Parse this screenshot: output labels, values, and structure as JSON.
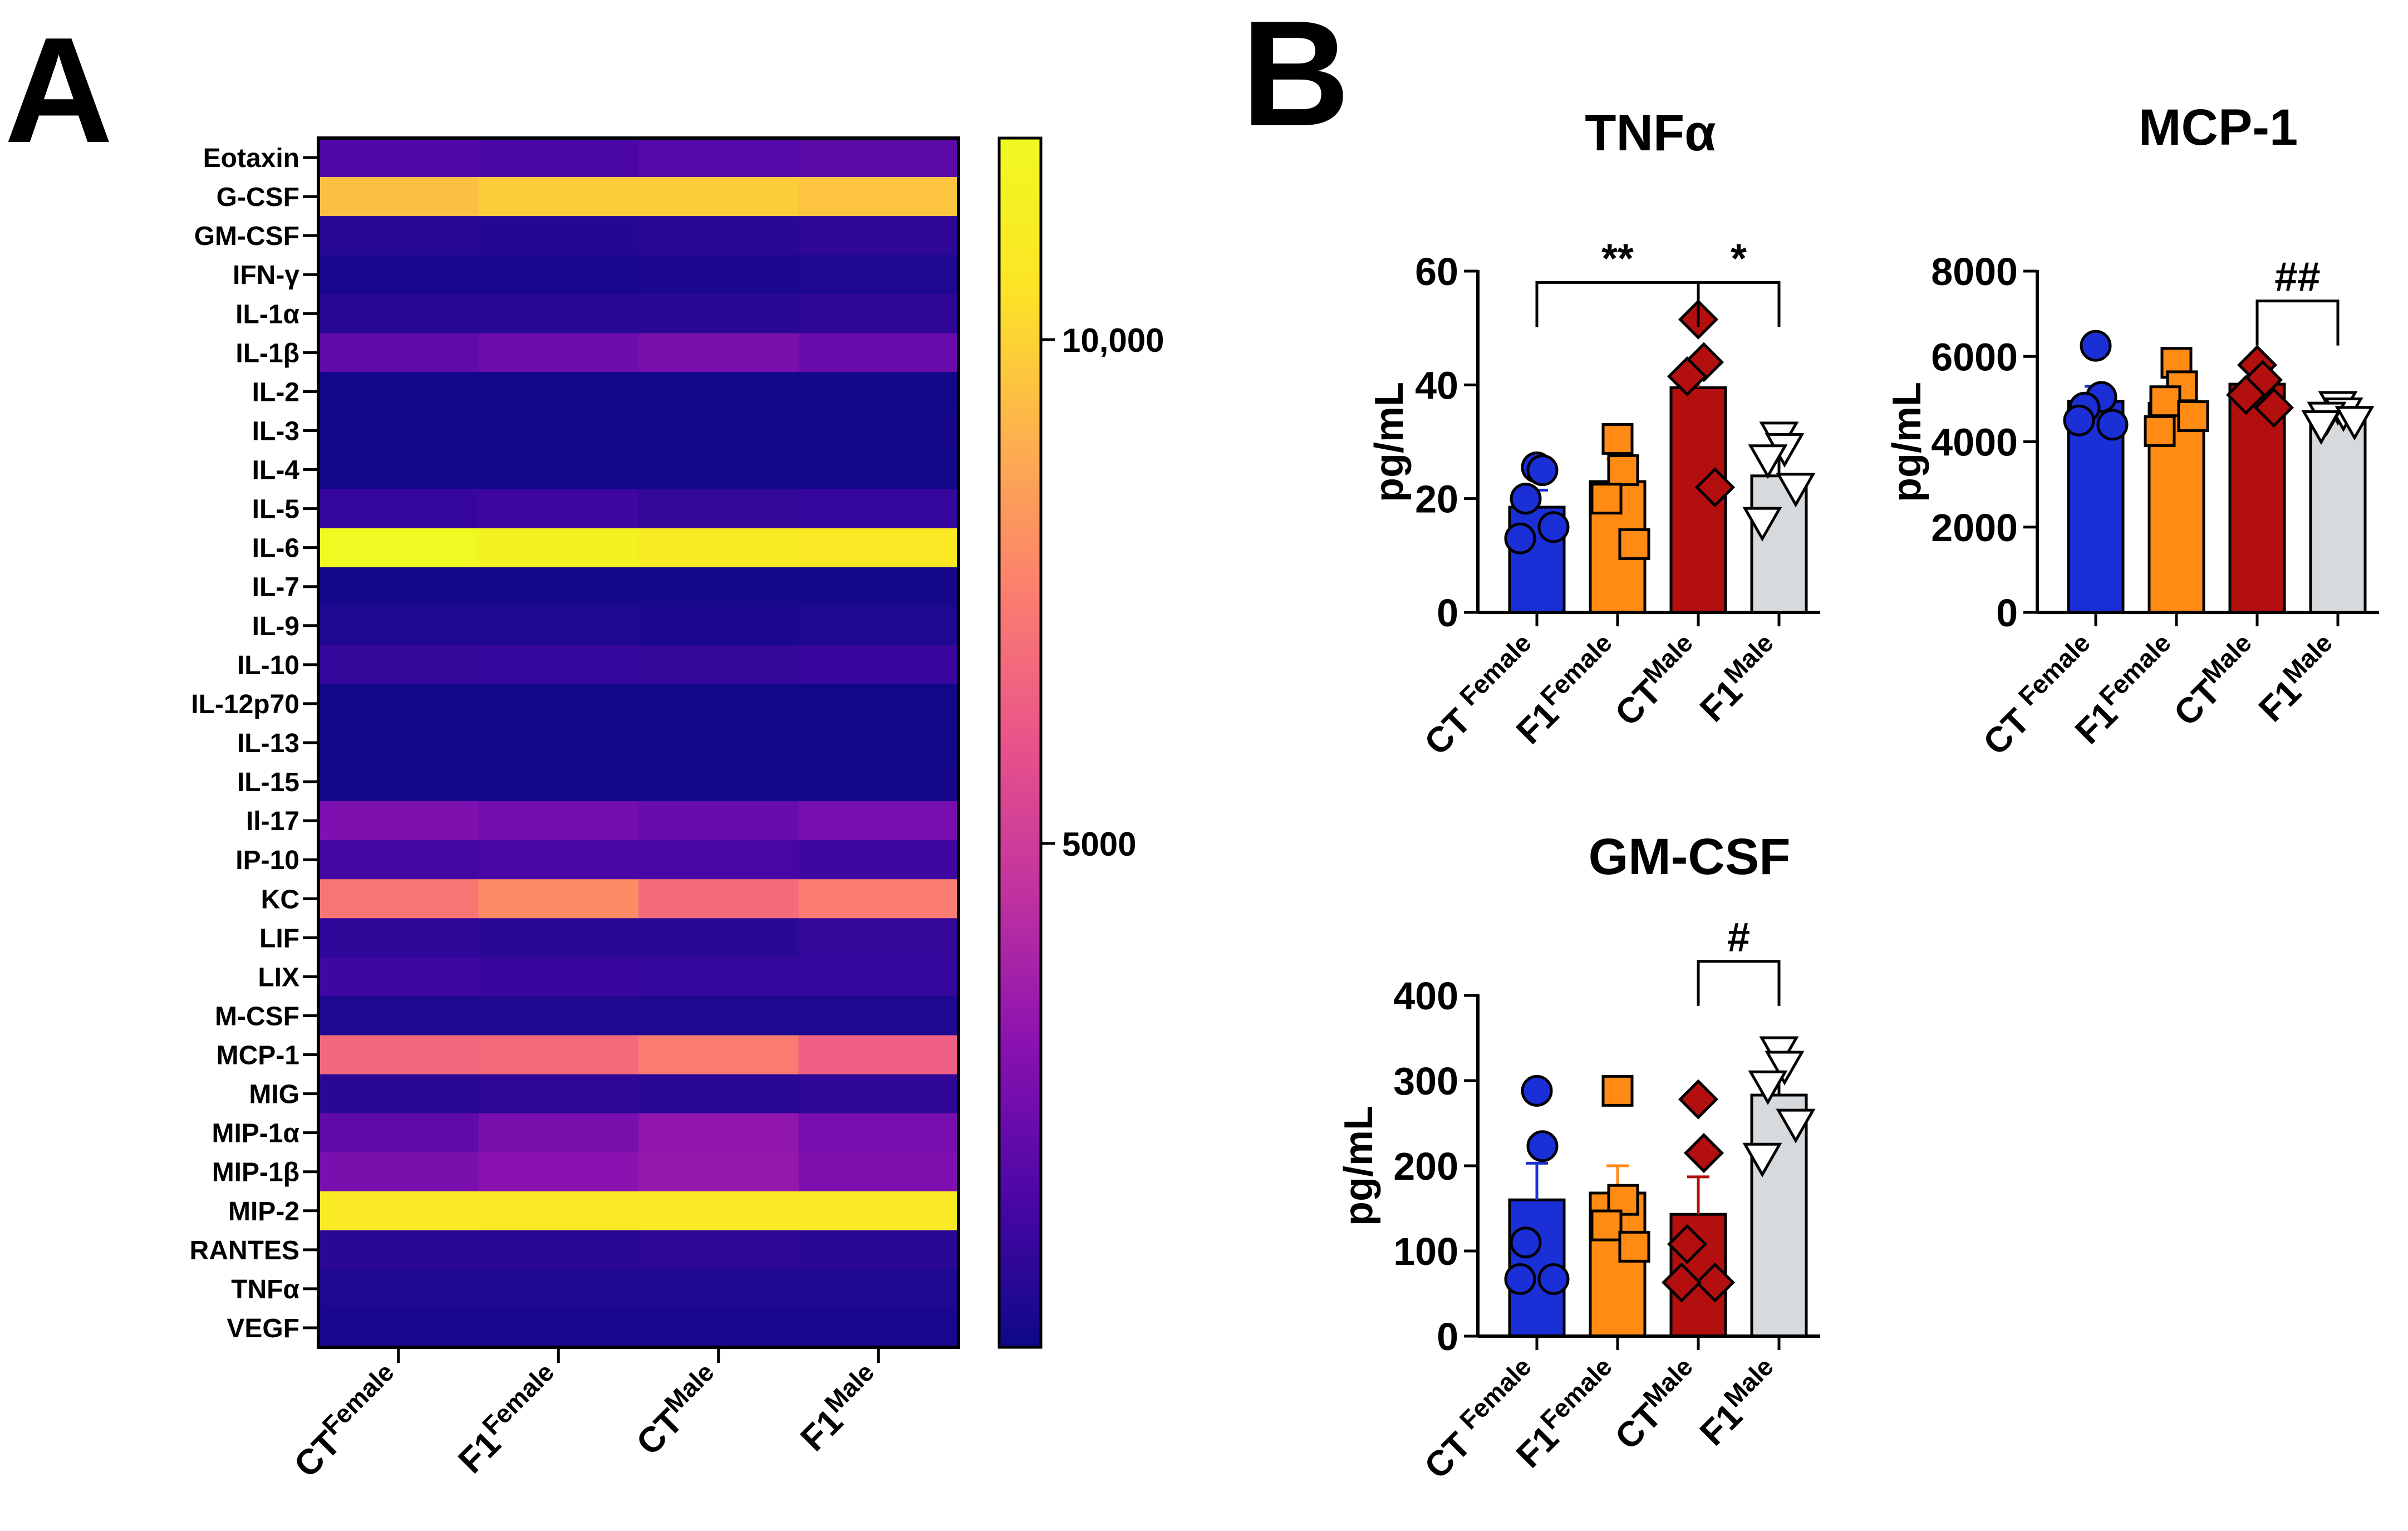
{
  "panel_a_letter": "A",
  "panel_b_letter": "B",
  "colors": {
    "CT Female": "#1a2fd6",
    "F1 Female": "#ff8a14",
    "CT Male": "#b30f0f",
    "F1 Male": "#d6dadd",
    "colormap": [
      "#0d0887",
      "#4b07a6",
      "#8a12b0",
      "#c0329f",
      "#e9538a",
      "#fb7f6e",
      "#fdb04f",
      "#fce426",
      "#f0f921"
    ]
  },
  "chart_data": [
    {
      "type": "heatmap",
      "title": "",
      "rows": [
        "Eotaxin",
        "G-CSF",
        "GM-CSF",
        "IFN-γ",
        "IL-1α",
        "IL-1β",
        "IL-2",
        "IL-3",
        "IL-4",
        "IL-5",
        "IL-6",
        "IL-7",
        "IL-9",
        "IL-10",
        "IL-12p70",
        "IL-13",
        "IL-15",
        "Il-17",
        "IP-10",
        "KC",
        "LIF",
        "LIX",
        "M-CSF",
        "MCP-1",
        "MIG",
        "MIP-1α",
        "MIP-1β",
        "MIP-2",
        "RANTES",
        "TNFα",
        "VEGF"
      ],
      "columns": [
        {
          "base": "CT",
          "sup": "Female"
        },
        {
          "base": "F1",
          "sup": "Female"
        },
        {
          "base": "CT",
          "sup": "Male"
        },
        {
          "base": "F1",
          "sup": "Male"
        }
      ],
      "values": [
        [
          1600,
          1500,
          1700,
          1800
        ],
        [
          9400,
          9800,
          9800,
          9600
        ],
        [
          600,
          550,
          650,
          800
        ],
        [
          300,
          300,
          350,
          400
        ],
        [
          600,
          650,
          650,
          800
        ],
        [
          2000,
          2300,
          2600,
          2200
        ],
        [
          100,
          100,
          100,
          100
        ],
        [
          200,
          200,
          200,
          200
        ],
        [
          150,
          150,
          150,
          150
        ],
        [
          1000,
          1200,
          900,
          1000
        ],
        [
          12000,
          11500,
          11000,
          10800
        ],
        [
          200,
          200,
          200,
          200
        ],
        [
          400,
          400,
          350,
          400
        ],
        [
          900,
          1000,
          900,
          1100
        ],
        [
          100,
          100,
          100,
          100
        ],
        [
          100,
          100,
          100,
          100
        ],
        [
          200,
          200,
          200,
          200
        ],
        [
          2700,
          2400,
          2200,
          2500
        ],
        [
          1300,
          1500,
          1400,
          1200
        ],
        [
          7200,
          7900,
          6800,
          7400
        ],
        [
          800,
          700,
          700,
          900
        ],
        [
          1200,
          1100,
          1000,
          1000
        ],
        [
          400,
          400,
          400,
          400
        ],
        [
          6700,
          6800,
          7400,
          6400
        ],
        [
          700,
          800,
          700,
          800
        ],
        [
          2000,
          2600,
          3200,
          2500
        ],
        [
          2600,
          3000,
          3300,
          2700
        ],
        [
          10900,
          10800,
          10900,
          10900
        ],
        [
          700,
          700,
          800,
          700
        ],
        [
          400,
          400,
          400,
          400
        ],
        [
          300,
          300,
          300,
          300
        ]
      ],
      "colorbar": {
        "ticks": [
          10000,
          5000
        ],
        "tick_labels": [
          "10,000",
          "5000"
        ],
        "range": [
          0,
          12000
        ]
      }
    },
    {
      "type": "bar",
      "title": "TNFα",
      "ylabel": "pg/mL",
      "ylim": [
        0,
        60
      ],
      "yticks": [
        0,
        20,
        40,
        60
      ],
      "categories": [
        {
          "base": "CT ",
          "sup": "Female"
        },
        {
          "base": "F1",
          "sup": "Female"
        },
        {
          "base": "CT",
          "sup": "Male"
        },
        {
          "base": "F1",
          "sup": "Male"
        }
      ],
      "means": [
        18.5,
        23,
        39.5,
        24
      ],
      "sem": [
        3,
        4,
        5,
        4
      ],
      "points": [
        [
          25.5,
          25,
          20,
          15,
          13
        ],
        [
          30.5,
          25,
          20,
          12
        ],
        [
          51.5,
          44,
          41.5,
          22
        ],
        [
          31,
          29,
          27,
          22,
          16
        ]
      ],
      "markers": [
        "circle",
        "square",
        "diamond",
        "triangle-down"
      ],
      "brackets": [
        {
          "from": 0,
          "to": 2,
          "y": 58,
          "label": "**"
        },
        {
          "from": 2,
          "to": 3,
          "y": 58,
          "label": "*"
        }
      ]
    },
    {
      "type": "bar",
      "title": "MCP-1",
      "ylabel": "pg/mL",
      "ylim": [
        0,
        8000
      ],
      "yticks": [
        0,
        2000,
        4000,
        6000,
        8000
      ],
      "categories": [
        {
          "base": "CT ",
          "sup": "Female"
        },
        {
          "base": "F1",
          "sup": "Female"
        },
        {
          "base": "CT",
          "sup": "Male"
        },
        {
          "base": "F1",
          "sup": "Male"
        }
      ],
      "means": [
        4950,
        4900,
        5350,
        4600
      ],
      "sem": [
        350,
        300,
        300,
        150
      ],
      "points": [
        [
          6250,
          5050,
          4800,
          4400,
          4500
        ],
        [
          5850,
          5300,
          4950,
          4600,
          4250
        ],
        [
          5800,
          5450,
          5100,
          4800
        ],
        [
          4850,
          4700,
          4600,
          4500,
          4400
        ]
      ],
      "markers": [
        "circle",
        "square",
        "diamond",
        "triangle-down"
      ],
      "brackets": [
        {
          "from": 2,
          "to": 3,
          "y": 7300,
          "label": "##"
        }
      ]
    },
    {
      "type": "bar",
      "title": "GM-CSF",
      "ylabel": "pg/mL",
      "ylim": [
        0,
        400
      ],
      "yticks": [
        0,
        100,
        200,
        300,
        400
      ],
      "categories": [
        {
          "base": "CT ",
          "sup": "Female"
        },
        {
          "base": "F1",
          "sup": "Female"
        },
        {
          "base": "CT",
          "sup": "Male"
        },
        {
          "base": "F1",
          "sup": "Male"
        }
      ],
      "means": [
        160,
        168,
        143,
        283
      ],
      "sem": [
        43,
        32,
        44,
        25
      ],
      "points": [
        [
          288,
          223,
          110,
          67,
          67
        ],
        [
          288,
          160,
          130,
          105
        ],
        [
          278,
          215,
          108,
          63,
          63
        ],
        [
          335,
          318,
          295,
          250,
          210
        ]
      ],
      "markers": [
        "circle",
        "square",
        "diamond",
        "triangle-down"
      ],
      "brackets": [
        {
          "from": 2,
          "to": 3,
          "y": 440,
          "label": "#"
        }
      ]
    }
  ]
}
